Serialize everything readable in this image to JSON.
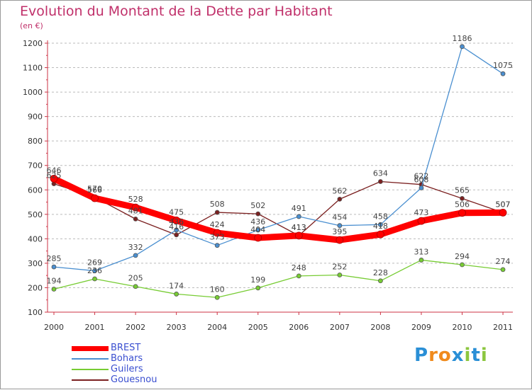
{
  "header": {
    "title": "Evolution du Montant de la Dette par Habitant",
    "subtitle": "(en €)"
  },
  "colors": {
    "title": "#c0306a",
    "legend_text": "#3a4fd0",
    "grid": "#bbbbbb"
  },
  "chart_data": {
    "type": "line",
    "title": "Evolution du Montant de la Dette par Habitant",
    "subtitle": "(en €)",
    "xlabel": "",
    "ylabel": "",
    "x": [
      "2000",
      "2001",
      "2002",
      "2003",
      "2004",
      "2005",
      "2006",
      "2007",
      "2008",
      "2009",
      "2010",
      "2011"
    ],
    "ylim": [
      100,
      1200
    ],
    "yticks": [
      "100",
      "200",
      "300",
      "400",
      "500",
      "600",
      "700",
      "800",
      "900",
      "1000",
      "1100",
      "1200"
    ],
    "grid": "horizontal dashed",
    "legend_position": "bottom-left",
    "series": [
      {
        "name": "Gouesnou",
        "color": "#7b2020",
        "values": [
          625,
          570,
          481,
          416,
          508,
          502,
          413,
          562,
          634,
          622,
          565,
          507
        ]
      },
      {
        "name": "Bohars",
        "color": "#4a8fd0",
        "values": [
          285,
          269,
          332,
          436,
          373,
          436,
          491,
          454,
          458,
          608,
          1186,
          1075
        ]
      },
      {
        "name": "Guilers",
        "color": "#77cc33",
        "values": [
          194,
          236,
          205,
          174,
          160,
          199,
          248,
          252,
          228,
          313,
          294,
          274
        ]
      },
      {
        "name": "BREST",
        "color": "#ff0000",
        "values": [
          646,
          566,
          528,
          475,
          424,
          404,
          413,
          395,
          418,
          473,
          506,
          507
        ]
      }
    ]
  },
  "legend": {
    "items": [
      {
        "label": "BREST",
        "color": "#ff0000"
      },
      {
        "label": "Bohars",
        "color": "#4a8fd0"
      },
      {
        "label": "Guilers",
        "color": "#77cc33"
      },
      {
        "label": "Gouesnou",
        "color": "#7b2020"
      }
    ]
  },
  "logo": {
    "text": "Proxiti",
    "letters": [
      "P",
      "r",
      "o",
      "x",
      "i",
      "t",
      "i"
    ],
    "colors": [
      "#2a8fd6",
      "#f08a1c",
      "#f08a1c",
      "#2a8fd6",
      "#8cc63f",
      "#2a8fd6",
      "#8cc63f"
    ]
  }
}
